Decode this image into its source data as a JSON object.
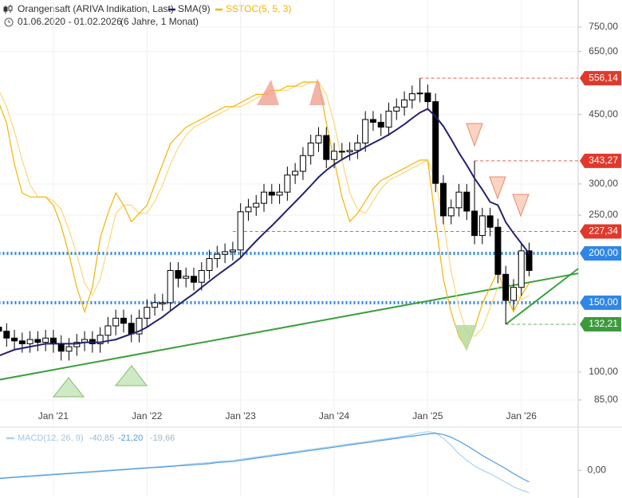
{
  "chart_data": [
    {
      "type": "candlestick",
      "title": "Orangensaft (ARIVA Indikation, Last)",
      "period": "01.06.2020 - 01.02.2026",
      "span": "(6 Jahre, 1 Monat)",
      "categories": [
        null,
        null,
        null,
        null,
        null,
        null,
        null,
        "Jan '21",
        null,
        null,
        null,
        null,
        null,
        null,
        null,
        null,
        null,
        null,
        null,
        "Jan '22",
        null,
        null,
        null,
        null,
        null,
        null,
        null,
        null,
        null,
        null,
        null,
        "Jan '23",
        null,
        null,
        null,
        null,
        null,
        null,
        null,
        null,
        null,
        null,
        null,
        "Jan '24",
        null,
        null,
        null,
        null,
        null,
        null,
        null,
        null,
        null,
        null,
        null,
        "Jan '25",
        null,
        null,
        null,
        null,
        null,
        null,
        null,
        null,
        null,
        null,
        null,
        "Jan '26",
        null
      ],
      "open": [
        130,
        127,
        122,
        120,
        118,
        121,
        119,
        122,
        118,
        113,
        116,
        119,
        121,
        118,
        124,
        131,
        137,
        133,
        125,
        137,
        146,
        149,
        150,
        181,
        173,
        175,
        169,
        181,
        194,
        199,
        202,
        204,
        255,
        262,
        268,
        286,
        281,
        286,
        316,
        323,
        354,
        381,
        398,
        346,
        363,
        362,
        365,
        381,
        437,
        430,
        418,
        459,
        470,
        490,
        508,
        510,
        485,
        301,
        249,
        261,
        286,
        256,
        222,
        249,
        233,
        177,
        152,
        164,
        203
      ],
      "high": [
        137,
        133,
        128,
        126,
        127,
        127,
        128,
        128,
        124,
        122,
        125,
        127,
        127,
        130,
        138,
        144,
        144,
        140,
        144,
        153,
        158,
        158,
        190,
        190,
        184,
        184,
        190,
        204,
        209,
        212,
        214,
        268,
        275,
        281,
        300,
        300,
        300,
        332,
        339,
        372,
        400,
        418,
        418,
        381,
        381,
        383,
        400,
        459,
        459,
        452,
        482,
        494,
        515,
        533,
        556.14,
        536,
        509,
        316,
        274,
        300,
        300,
        343.27,
        261,
        261,
        245,
        186,
        172,
        213,
        213
      ],
      "low": [
        121,
        116,
        114,
        112,
        112,
        113,
        113,
        112,
        107,
        107,
        110,
        113,
        112,
        112,
        118,
        124,
        126,
        119,
        119,
        130,
        139,
        143,
        143,
        164,
        164,
        161,
        161,
        172,
        184,
        189,
        192,
        194,
        242,
        249,
        255,
        267,
        267,
        272,
        300,
        307,
        336,
        362,
        329,
        329,
        344,
        344,
        347,
        362,
        409,
        397,
        397,
        436,
        447,
        466,
        483,
        461,
        286,
        237,
        237,
        248,
        243,
        211,
        211,
        221,
        168,
        132.21,
        144,
        156,
        175
      ],
      "close": [
        127,
        122,
        120,
        118,
        121,
        119,
        122,
        118,
        113,
        116,
        119,
        121,
        118,
        124,
        131,
        137,
        133,
        125,
        137,
        146,
        150,
        150,
        181,
        173,
        175,
        169,
        181,
        194,
        199,
        202,
        204,
        255,
        262,
        268,
        286,
        281,
        286,
        316,
        323,
        354,
        381,
        398,
        346,
        363,
        362,
        365,
        381,
        437,
        430,
        418,
        459,
        470,
        490,
        508,
        510,
        485,
        301,
        249,
        261,
        286,
        256,
        222,
        249,
        233,
        177,
        152,
        164,
        203,
        181
      ],
      "up_color": "#ffffff",
      "down_color": "#000000",
      "series": [
        {
          "name": "SMA(9)",
          "color": "#22226e",
          "values": [
            110,
            112,
            114,
            115,
            116,
            117,
            118,
            118,
            118,
            118,
            118,
            119,
            119,
            119,
            120,
            121,
            123,
            125,
            127,
            130,
            134,
            138,
            143,
            148,
            153,
            158,
            164,
            170,
            176,
            182,
            188,
            195,
            205,
            215,
            225,
            235,
            246,
            258,
            270,
            283,
            297,
            312,
            325,
            336,
            346,
            355,
            362,
            372,
            381,
            390,
            400,
            412,
            425,
            440,
            455,
            465,
            445,
            420,
            390,
            360,
            335,
            310,
            290,
            270,
            265,
            240,
            225,
            212,
            200
          ]
        },
        {
          "name": "SSTOC(5, 5, 3)",
          "color": "#f5b400",
          "axis": "y2",
          "values": [
            75,
            70,
            60,
            53,
            52,
            52,
            52,
            50,
            45,
            38,
            30,
            24,
            30,
            42,
            48,
            53,
            50,
            46,
            48,
            50,
            55,
            60,
            65,
            67,
            69,
            70,
            71,
            72,
            73,
            74,
            74,
            75,
            76,
            77,
            77,
            78,
            78,
            79,
            79,
            80,
            80,
            80,
            70,
            61,
            52,
            46,
            48,
            51,
            54,
            56,
            57,
            58,
            59,
            60,
            61,
            61,
            46,
            32,
            24,
            18,
            15,
            20,
            26,
            30,
            34,
            28,
            24,
            28,
            31
          ],
          "signal": [
            78,
            74,
            68,
            61,
            55,
            52,
            52,
            51,
            49,
            44,
            38,
            31,
            28,
            32,
            40,
            48,
            50,
            50,
            48,
            48,
            51,
            55,
            60,
            64,
            67,
            69,
            70,
            71,
            72,
            73,
            74,
            74,
            75,
            76,
            77,
            77,
            78,
            78,
            79,
            79,
            80,
            80,
            77,
            70,
            61,
            53,
            49,
            48,
            51,
            54,
            56,
            57,
            58,
            59,
            60,
            61,
            56,
            46,
            34,
            25,
            19,
            18,
            20,
            25,
            30,
            31,
            29,
            27,
            28
          ],
          "signal_color": "#fbd77a"
        }
      ],
      "ylim": [
        80,
        878
      ],
      "y2lim": [
        0,
        100
      ],
      "log_scale": true,
      "yticks": [
        {
          "value": 750,
          "label": "750,00"
        },
        {
          "value": 650,
          "label": "650,00"
        },
        {
          "value": 450,
          "label": "450,00"
        },
        {
          "value": 300,
          "label": "300,00"
        },
        {
          "value": 250,
          "label": "250,00"
        },
        {
          "value": 100,
          "label": "100,00"
        },
        {
          "value": 85,
          "label": "85,00"
        }
      ],
      "levels": [
        {
          "value": 556.14,
          "label": "556,14",
          "color": "#e0392b",
          "style": "dashed",
          "start": 54
        },
        {
          "value": 343.27,
          "label": "343,27",
          "color": "#e0392b",
          "style": "dashed",
          "start": 61
        },
        {
          "value": 227.34,
          "label": "227,34",
          "color": "#e0392b",
          "style": "dashed",
          "start": 30
        },
        {
          "value": 200,
          "label": "200,00",
          "color": "#2f86e6",
          "style": "dotted",
          "start": 0
        },
        {
          "value": 150,
          "label": "150,00",
          "color": "#2f86e6",
          "style": "dotted",
          "start": 0
        },
        {
          "value": 132.21,
          "label": "132,21",
          "color": "#3c9a3c",
          "style": "dashed",
          "start": 65
        }
      ],
      "trendlines": [
        {
          "color": "#3aa03a",
          "from": [
            0,
            95.6
          ],
          "to": [
            74.3,
            178
          ]
        },
        {
          "color": "#3aa03a",
          "from": [
            65,
            132.21
          ],
          "to": [
            74.3,
            183
          ]
        }
      ]
    },
    {
      "type": "line",
      "readings": [
        {
          "value": -40.85,
          "label": "-40,85"
        },
        {
          "value": -21.2,
          "label": "-21,20"
        },
        {
          "value": -19.66,
          "label": "-19,66"
        }
      ],
      "series": [
        {
          "name": "MACD(12, 26, 9)",
          "color": "#a9d3f2",
          "values": [
            -14,
            -13,
            -12,
            -11,
            -10,
            -9,
            -8,
            -7,
            -6,
            -5,
            -4,
            -3,
            -2,
            -1,
            0,
            1,
            2,
            3,
            4,
            5,
            6,
            7,
            8,
            9,
            11,
            12,
            13,
            14,
            16,
            17,
            18,
            20,
            22,
            24,
            26,
            28,
            30,
            32,
            34,
            36,
            38,
            40,
            42,
            44,
            46,
            48,
            50,
            52,
            54,
            56,
            58,
            60,
            62,
            65,
            68,
            70,
            68,
            58,
            45,
            30,
            18,
            8,
            0,
            -6,
            -14,
            -22,
            -30,
            -36,
            -40.85
          ]
        },
        {
          "color": "#4f9be0",
          "values": [
            -15,
            -14,
            -13,
            -12,
            -11,
            -10,
            -9,
            -8,
            -7,
            -6,
            -5,
            -4,
            -3,
            -2,
            -1,
            0,
            1,
            2,
            3,
            4,
            5,
            6,
            7,
            8,
            9,
            10,
            11,
            12,
            14,
            15,
            16,
            18,
            20,
            22,
            24,
            26,
            28,
            30,
            32,
            34,
            36,
            38,
            40,
            42,
            44,
            46,
            48,
            50,
            52,
            54,
            56,
            58,
            60,
            62,
            64,
            66,
            67,
            65,
            60,
            53,
            45,
            36,
            27,
            19,
            11,
            3,
            -6,
            -14,
            -21.2
          ]
        }
      ],
      "ylim": [
        -46,
        77
      ],
      "yticks": [
        {
          "value": 0,
          "label": "0,00"
        }
      ]
    }
  ]
}
